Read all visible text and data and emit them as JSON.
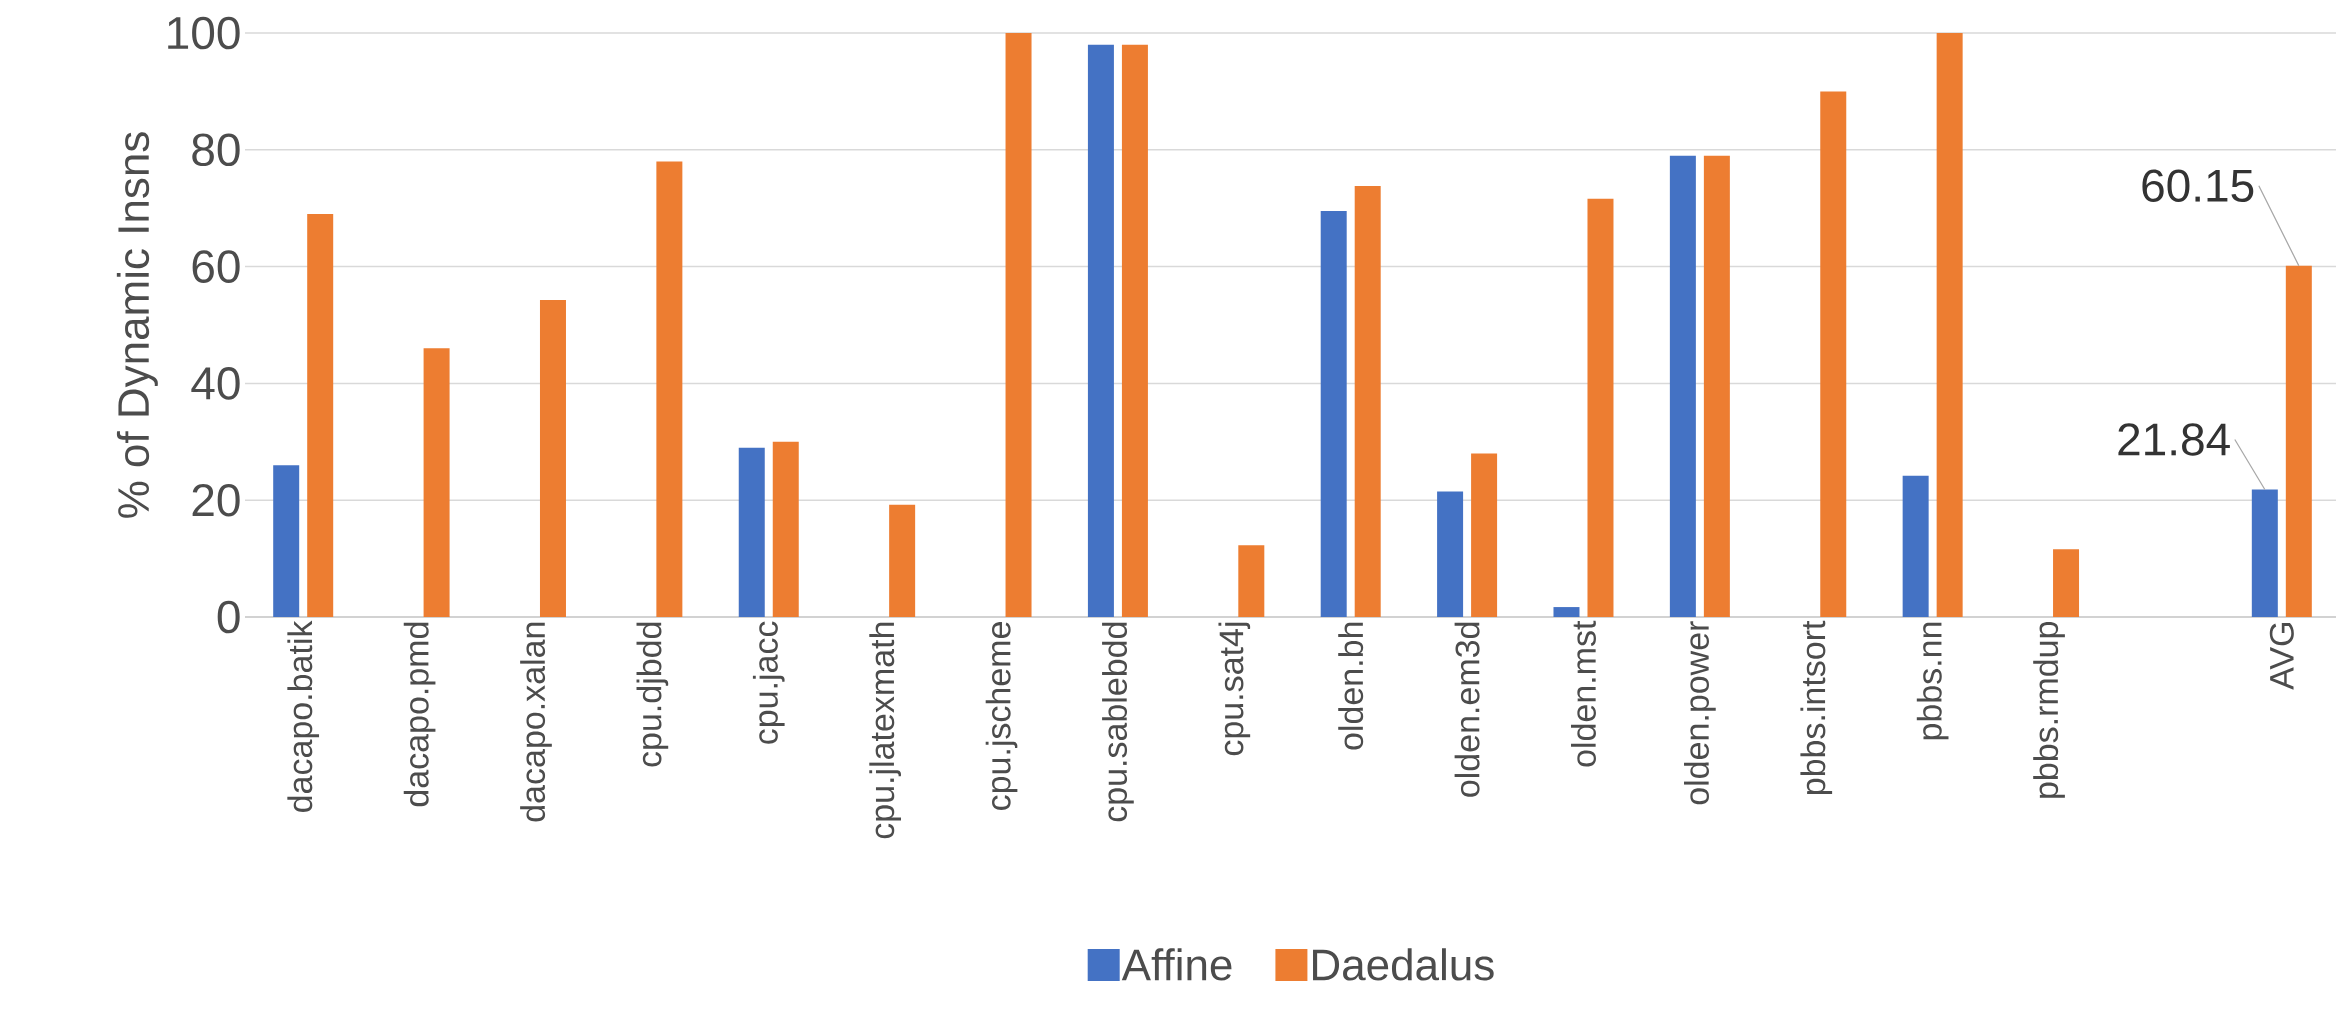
{
  "chart_data": {
    "type": "bar",
    "ylabel": "% of Dynamic Insns",
    "categories": [
      "dacapo.batik",
      "dacapo.pmd",
      "dacapo.xalan",
      "cpu.djbdd",
      "cpu.jacc",
      "cpu.jlatexmath",
      "cpu.jscheme",
      "cpu.sablebdd",
      "cpu.sat4j",
      "olden.bh",
      "olden.em3d",
      "olden.mst",
      "olden.power",
      "pbbs.intsort",
      "pbbs.nn",
      "pbbs.rmdup",
      null,
      "AVG"
    ],
    "series": [
      {
        "name": "Affine",
        "color": "#4472c4",
        "values": [
          26,
          0,
          0,
          0,
          29,
          0,
          0,
          98,
          0,
          69.5,
          21.5,
          1.7,
          79,
          0,
          24.2,
          0,
          null,
          21.84
        ],
        "value_labels": [
          null,
          null,
          null,
          null,
          null,
          null,
          null,
          null,
          null,
          null,
          null,
          null,
          null,
          null,
          null,
          null,
          null,
          "21.84"
        ]
      },
      {
        "name": "Daedalus",
        "color": "#ed7d31",
        "values": [
          69,
          46,
          54.3,
          78,
          30,
          19.2,
          100,
          98,
          12.3,
          73.8,
          28,
          71.6,
          79,
          90,
          100,
          11.6,
          null,
          60.15
        ],
        "value_labels": [
          null,
          null,
          null,
          null,
          null,
          null,
          null,
          null,
          null,
          null,
          null,
          null,
          null,
          null,
          null,
          null,
          null,
          "60.15"
        ]
      }
    ],
    "ylim": [
      0,
      100
    ],
    "yticks": [
      0,
      20,
      40,
      60,
      80,
      100
    ],
    "grid": "y",
    "legend": "bottom"
  }
}
